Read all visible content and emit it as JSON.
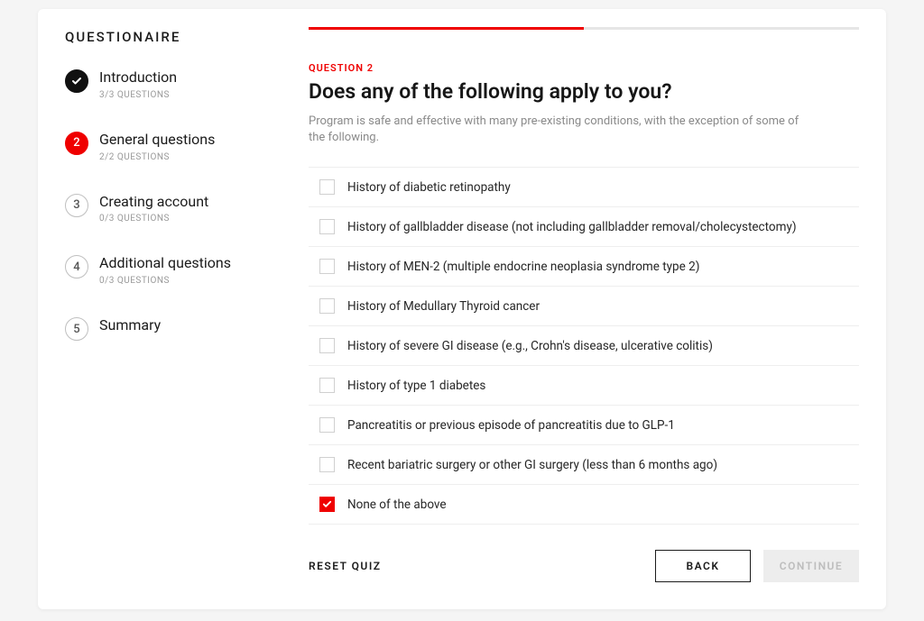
{
  "colors": {
    "accent": "#ef0000",
    "text": "#1b1b1b",
    "muted": "#8a8a8a",
    "border": "#eeeeee",
    "track": "#e6e6e6",
    "disabled_bg": "#ededed",
    "disabled_text": "#bdbdbd",
    "done_circle": "#111111"
  },
  "sidebar": {
    "title": "QUESTIONAIRE",
    "steps": [
      {
        "num": "1",
        "label": "Introduction",
        "sub": "3/3 QUESTIONS",
        "state": "done"
      },
      {
        "num": "2",
        "label": "General questions",
        "sub": "2/2 QUESTIONS",
        "state": "active"
      },
      {
        "num": "3",
        "label": "Creating account",
        "sub": "0/3 QUESTIONS",
        "state": "pending"
      },
      {
        "num": "4",
        "label": "Additional questions",
        "sub": "0/3 QUESTIONS",
        "state": "pending"
      },
      {
        "num": "5",
        "label": "Summary",
        "sub": "",
        "state": "pending"
      }
    ]
  },
  "main": {
    "progress_percent": 50,
    "question_number": "QUESTION 2",
    "title": "Does any of the following apply to you?",
    "description": "Program is safe and effective with many pre-existing conditions, with the exception of some of the following.",
    "options": [
      {
        "label": "History of diabetic retinopathy",
        "checked": false
      },
      {
        "label": "History of gallbladder disease (not including gallbladder removal/cholecystectomy)",
        "checked": false
      },
      {
        "label": "History of MEN-2 (multiple endocrine neoplasia syndrome type 2)",
        "checked": false
      },
      {
        "label": "History of Medullary Thyroid cancer",
        "checked": false
      },
      {
        "label": "History of severe GI disease (e.g., Crohn's disease, ulcerative colitis)",
        "checked": false
      },
      {
        "label": "History of type 1 diabetes",
        "checked": false
      },
      {
        "label": "Pancreatitis or previous episode of pancreatitis due to GLP-1",
        "checked": false
      },
      {
        "label": "Recent bariatric surgery or other GI surgery (less than 6 months ago)",
        "checked": false
      },
      {
        "label": "None of the above",
        "checked": true
      }
    ],
    "footer": {
      "reset": "RESET QUIZ",
      "back": "BACK",
      "continue": "CONTINUE"
    }
  }
}
